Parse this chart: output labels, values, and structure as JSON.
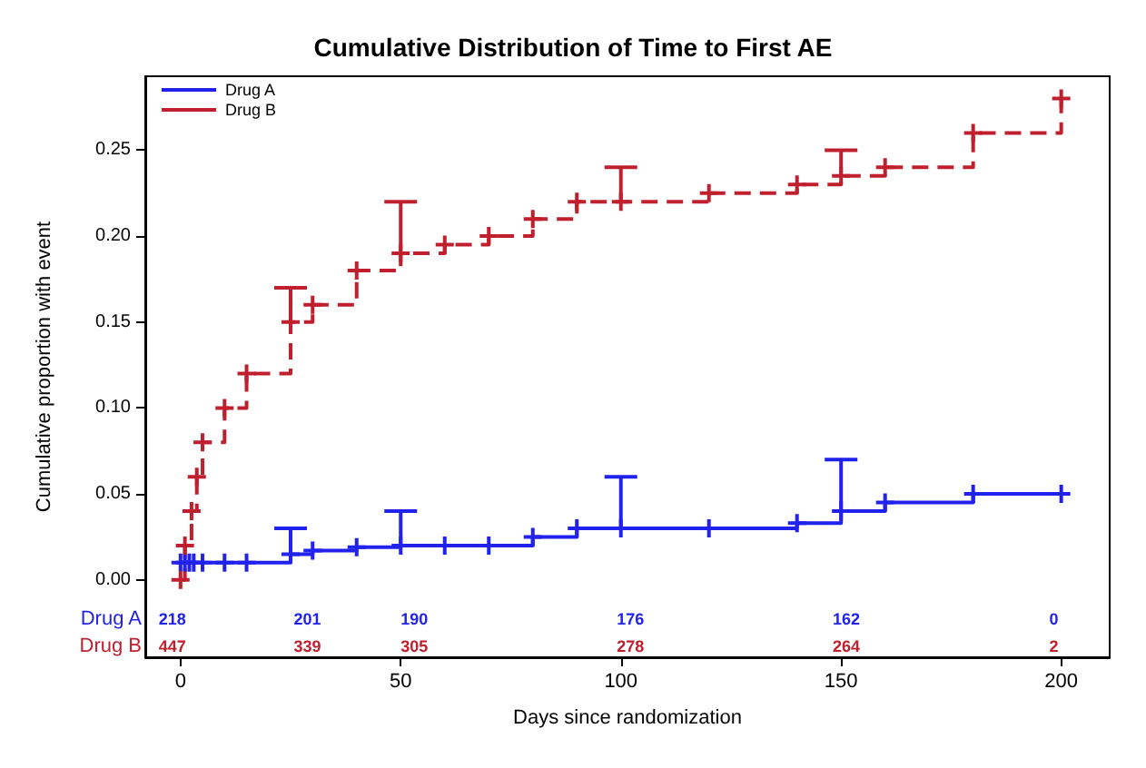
{
  "chart_data": {
    "type": "step",
    "title": "Cumulative Distribution of Time to First AE",
    "xlabel": "Days since randomization",
    "ylabel": "Cumulative proportion with event",
    "xlim": [
      -8,
      211
    ],
    "xticks": [
      0,
      50,
      100,
      150,
      200
    ],
    "ylim": [
      -0.045,
      0.293
    ],
    "yticks": [
      {
        "value": 0,
        "label": "0.00"
      },
      {
        "value": 0.05,
        "label": "0.05"
      },
      {
        "value": 0.1,
        "label": "0.10"
      },
      {
        "value": 0.15,
        "label": "0.15"
      },
      {
        "value": 0.2,
        "label": "0.20"
      },
      {
        "value": 0.25,
        "label": "0.25"
      }
    ],
    "grid": false,
    "legend": "top left",
    "marker": "cross",
    "series": [
      {
        "name": "Drug A",
        "color": "#2222ee",
        "line_style": "solid",
        "x": [
          0,
          1,
          2,
          3,
          5,
          10,
          15,
          25,
          30,
          40,
          50,
          60,
          70,
          80,
          90,
          100,
          120,
          140,
          150,
          160,
          180,
          200
        ],
        "values": [
          0.01,
          0.01,
          0.01,
          0.01,
          0.01,
          0.01,
          0.01,
          0.015,
          0.017,
          0.019,
          0.02,
          0.02,
          0.02,
          0.025,
          0.03,
          0.03,
          0.03,
          0.033,
          0.04,
          0.045,
          0.05,
          0.05
        ],
        "errors": [
          null,
          null,
          null,
          null,
          null,
          null,
          null,
          [
            0.015,
            0.03
          ],
          null,
          null,
          [
            0.02,
            0.04
          ],
          null,
          null,
          null,
          null,
          [
            0.03,
            0.06
          ],
          null,
          null,
          [
            0.04,
            0.07
          ],
          null,
          null,
          null
        ]
      },
      {
        "name": "Drug B",
        "color": "#c0202e",
        "line_style": "dashed",
        "x": [
          0,
          1,
          2.5,
          3.7,
          5,
          10,
          15,
          25,
          30,
          40,
          50,
          60,
          70,
          80,
          90,
          100,
          120,
          140,
          150,
          160,
          180,
          200
        ],
        "values": [
          0,
          0.02,
          0.04,
          0.06,
          0.08,
          0.1,
          0.12,
          0.15,
          0.16,
          0.18,
          0.19,
          0.195,
          0.2,
          0.21,
          0.22,
          0.22,
          0.225,
          0.23,
          0.235,
          0.24,
          0.26,
          0.28
        ],
        "errors": [
          null,
          null,
          null,
          null,
          null,
          null,
          null,
          [
            0.15,
            0.17
          ],
          null,
          null,
          [
            0.19,
            0.22
          ],
          null,
          null,
          null,
          null,
          [
            0.22,
            0.24
          ],
          null,
          null,
          [
            0.235,
            0.25
          ],
          null,
          null,
          null
        ]
      }
    ],
    "annotations": [
      "Drug A",
      "Drug B",
      "218",
      "201",
      "190",
      "176",
      "162",
      "0",
      "447",
      "339",
      "305",
      "278",
      "264",
      "2"
    ]
  }
}
